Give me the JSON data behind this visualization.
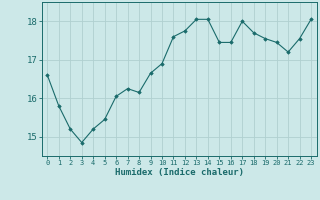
{
  "x": [
    0,
    1,
    2,
    3,
    4,
    5,
    6,
    7,
    8,
    9,
    10,
    11,
    12,
    13,
    14,
    15,
    16,
    17,
    18,
    19,
    20,
    21,
    22,
    23
  ],
  "y": [
    16.6,
    15.8,
    15.2,
    14.85,
    15.2,
    15.45,
    16.05,
    16.25,
    16.15,
    16.65,
    16.9,
    17.6,
    17.75,
    18.05,
    18.05,
    17.45,
    17.45,
    18.0,
    17.7,
    17.55,
    17.45,
    17.2,
    17.55,
    18.05
  ],
  "line_color": "#1a6b6b",
  "marker_color": "#1a6b6b",
  "bg_color": "#cce8e8",
  "grid_color": "#b0d0d0",
  "axis_color": "#1a6b6b",
  "tick_color": "#1a6b6b",
  "xlabel": "Humidex (Indice chaleur)",
  "ylim": [
    14.5,
    18.5
  ],
  "xlim": [
    -0.5,
    23.5
  ],
  "yticks": [
    15,
    16,
    17,
    18
  ],
  "xticks": [
    0,
    1,
    2,
    3,
    4,
    5,
    6,
    7,
    8,
    9,
    10,
    11,
    12,
    13,
    14,
    15,
    16,
    17,
    18,
    19,
    20,
    21,
    22,
    23
  ]
}
